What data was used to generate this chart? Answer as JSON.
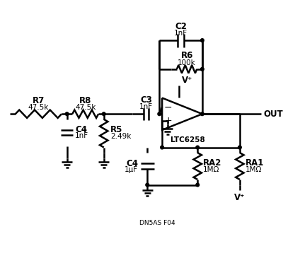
{
  "bg_color": "#ffffff",
  "line_color": "#000000",
  "lw": 1.8,
  "fs": 8.5,
  "footnote": "DN5AS F04",
  "R7_label": "R7",
  "R7_val": "47.5k",
  "R8_label": "R8",
  "R8_val": "47.5k",
  "R5_label": "R5",
  "R5_val": "2.49k",
  "R6_label": "R6",
  "R6_val": "100k",
  "C2_label": "C2",
  "C2_val": "1nF",
  "C3_label": "C3",
  "C3_val": "1nF",
  "C4a_label": "C4",
  "C4a_val": "1nF",
  "C4b_label": "C4",
  "C4b_val": "1μF",
  "RA1_label": "RA1",
  "RA1_val": "1MΩ",
  "RA2_label": "RA2",
  "RA2_val": "1MΩ",
  "opa_label": "LTC6258",
  "vplus": "V⁺",
  "out_label": "OUT"
}
